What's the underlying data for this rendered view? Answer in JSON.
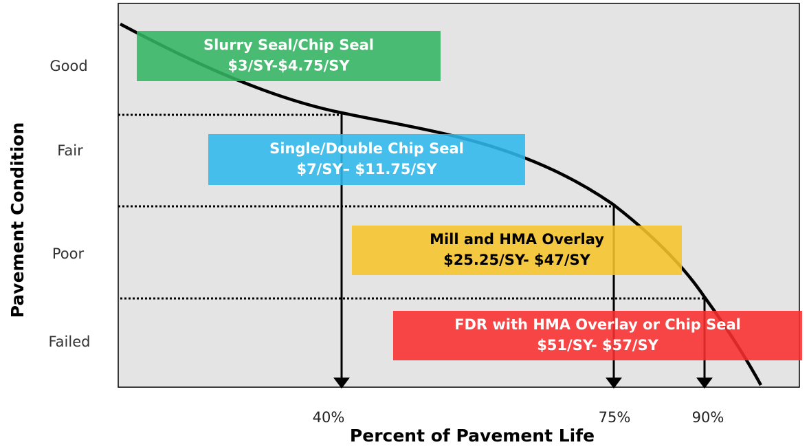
{
  "axes": {
    "y_label": "Pavement Condition",
    "x_label": "Percent of Pavement Life"
  },
  "conditions": [
    "Good",
    "Fair",
    "Poor",
    "Failed"
  ],
  "markers": [
    "40%",
    "75%",
    "90%"
  ],
  "treatments": [
    {
      "name": "Slurry Seal/Chip Seal",
      "cost": "$3/SY-$4.75/SY",
      "color": "#34b562"
    },
    {
      "name": "Single/Double Chip Seal",
      "cost": "$7/SY– $11.75/SY",
      "color": "#30b8ec"
    },
    {
      "name": "Mill and HMA Overlay",
      "cost": "$25.25/SY- $47/SY",
      "color": "#f7c42a"
    },
    {
      "name": "FDR with HMA Overlay or Chip Seal",
      "cost": "$51/SY- $57/SY",
      "color": "#f92f2f"
    }
  ]
}
